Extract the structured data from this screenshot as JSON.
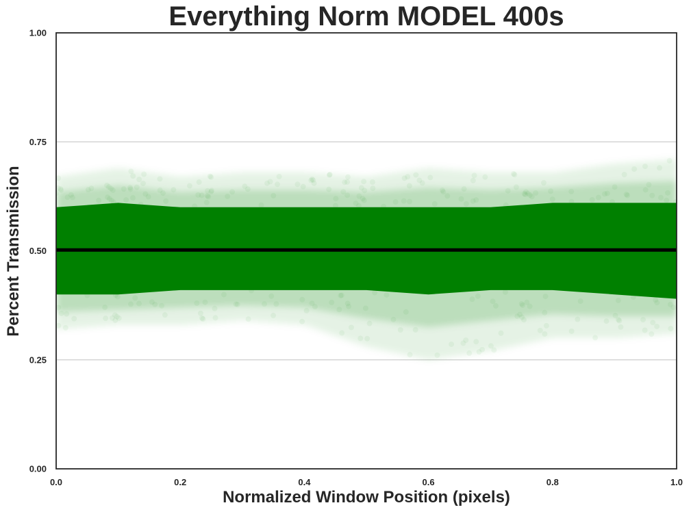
{
  "chart_data": {
    "type": "scatter",
    "title": "Everything Norm MODEL 400s",
    "xlabel": "Normalized Window Position (pixels)",
    "ylabel": "Percent Transmission",
    "xlim": [
      0.0,
      1.0
    ],
    "ylim": [
      0.0,
      1.0
    ],
    "xticks": [
      "0.0",
      "0.2",
      "0.4",
      "0.6",
      "0.8",
      "1.0"
    ],
    "yticks": [
      "0.00",
      "0.25",
      "0.50",
      "0.75",
      "1.00"
    ],
    "grid": "horizontal",
    "series": [
      {
        "kind": "scatter-band",
        "color": "#008000",
        "x": [
          0.0,
          0.1,
          0.2,
          0.3,
          0.4,
          0.5,
          0.6,
          0.7,
          0.8,
          0.9,
          1.0
        ],
        "y_center": [
          0.5,
          0.5,
          0.5,
          0.5,
          0.5,
          0.5,
          0.5,
          0.5,
          0.5,
          0.5,
          0.5
        ],
        "y_core_low": [
          0.4,
          0.4,
          0.41,
          0.41,
          0.41,
          0.41,
          0.4,
          0.41,
          0.41,
          0.4,
          0.39
        ],
        "y_core_high": [
          0.6,
          0.61,
          0.6,
          0.6,
          0.6,
          0.6,
          0.6,
          0.6,
          0.61,
          0.61,
          0.61
        ],
        "y_outer_low": [
          0.32,
          0.33,
          0.33,
          0.34,
          0.33,
          0.28,
          0.25,
          0.27,
          0.3,
          0.3,
          0.31
        ],
        "y_outer_high": [
          0.67,
          0.69,
          0.67,
          0.68,
          0.68,
          0.67,
          0.69,
          0.68,
          0.68,
          0.7,
          0.71
        ]
      },
      {
        "kind": "line",
        "color": "#000000",
        "x": [
          0.0,
          1.0
        ],
        "y": [
          0.502,
          0.502
        ]
      }
    ]
  }
}
